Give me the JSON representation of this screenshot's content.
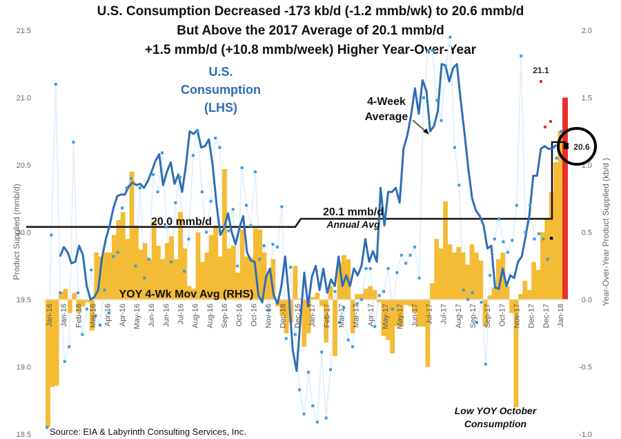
{
  "chart_data": {
    "type": "bar+line",
    "title": [
      "U.S. Consumption Decreased -173 kb/d (-1.2 mmb/wk) to 20.6 mmb/d",
      "But Above the 2017 Average of 20.1 mmb/d",
      "+1.5 mmb/d (+10.8 mmb/week) Higher Year-Over-Year"
    ],
    "ylabel_left": "Product Supplied (mmb/d)",
    "ylabel_right": "Year-Over-Year Product Supplied (kb/d )",
    "ylim_left": [
      18.5,
      21.5
    ],
    "ylim_right": [
      -1.0,
      2.0
    ],
    "yticks_left": [
      "18.5",
      "19.0",
      "19.5",
      "20.0",
      "20.5",
      "21.0",
      "21.5"
    ],
    "yticks_right": [
      "-1.0",
      "-0.5",
      "0.0",
      "0.5",
      "1.0",
      "1.5",
      "2.0"
    ],
    "x_tick_labels": [
      "Jan-16",
      "Jan-16",
      "Feb-16",
      "Mar-16",
      "Apr-16",
      "Apr-16",
      "May-16",
      "Jun-16",
      "Jun-16",
      "Jul-16",
      "Aug-16",
      "Aug-16",
      "Sep-16",
      "Oct-16",
      "Oct-16",
      "Nov-16",
      "Dec-16",
      "Dec-16",
      "Jan-17",
      "Feb-17",
      "Mar-17",
      "Mar-17",
      "Apr-17",
      "May-17",
      "May-17",
      "Jun-17",
      "Jul-17",
      "Jul-17",
      "Aug-17",
      "Sep-17",
      "Sep-17",
      "Oct-17",
      "Nov-17",
      "Dec-17",
      "Dec-17",
      "Jan-18"
    ],
    "series": [
      {
        "name": "YOY 4-Wk Mov Avg (RHS)",
        "axis": "right",
        "kind": "bar",
        "color": "#f4bb35",
        "values": [
          -0.95,
          -0.65,
          -0.64,
          0.06,
          0.08,
          -0.1,
          0.05,
          -0.1,
          -0.05,
          -0.02,
          -0.23,
          0.35,
          0.32,
          0.35,
          0.35,
          0.48,
          0.59,
          0.65,
          0.45,
          0.95,
          0.55,
          0.37,
          0.42,
          0.3,
          0.58,
          0.4,
          0.3,
          0.42,
          0.47,
          0.3,
          0.65,
          0.38,
          0.1,
          0.08,
          0.5,
          0.28,
          0.35,
          0.48,
          0.55,
          0.32,
          0.97,
          0.38,
          0.4,
          0.2,
          0.52,
          0.32,
          0.31,
          0.53,
          0.52,
          0.35,
          0.2,
          0.3,
          -0.05,
          -0.12,
          -0.25,
          -0.17,
          0.25,
          0.01,
          -0.35,
          -0.25,
          0.02,
          0.05,
          -0.05,
          -0.32,
          0.1,
          -0.42,
          0.28,
          0.33,
          0.3,
          -0.25,
          0.04,
          0.04,
          0.08,
          0.1,
          0.07,
          -0.02,
          -0.27,
          -0.3,
          -0.4,
          -0.2,
          -0.2,
          -0.04,
          -0.05,
          -0.1,
          -0.2,
          -0.2,
          -0.5,
          0.12,
          0.45,
          0.38,
          0.73,
          0.41,
          0.35,
          0.39,
          0.35,
          0.26,
          0.41,
          0.35,
          0.29,
          -0.2,
          0.03,
          0.09,
          0.3,
          0.35,
          0.1,
          -0.1,
          -0.8
        ],
        "tail_values": [
          0.04,
          0.14,
          0.07,
          0.28,
          0.22,
          0.5,
          0.6,
          0.8,
          1.02,
          1.25
        ],
        "latest_value": 1.5,
        "latest_color": "#e8302a"
      },
      {
        "name": "U.S. Consumption (LHS) weekly",
        "axis": "left",
        "kind": "scatter-line",
        "color": "#3a9ee0",
        "values": [
          18.55,
          19.98,
          21.1,
          19.55,
          19.04,
          19.15,
          20.67,
          19.55,
          19.24,
          19.43,
          19.72,
          19.38,
          19.31,
          19.57,
          19.4,
          19.82,
          19.85,
          20.18,
          20.33,
          20.4,
          19.75,
          20.33,
          19.66,
          19.8,
          20.43,
          20.3,
          20.59,
          20.04,
          19.78,
          20.22,
          20.41,
          19.71,
          19.95,
          20.57,
          20.75,
          20.3,
          20.0,
          20.23,
          20.7,
          20.63,
          20.04,
          20.01,
          20.17,
          19.75,
          20.48,
          20.2,
          20.05,
          20.45,
          19.8,
          19.9,
          19.42,
          19.91,
          19.89,
          20.19,
          19.21,
          19.74,
          19.24,
          18.83,
          18.65,
          18.96,
          18.71,
          18.59,
          19.11,
          18.62,
          18.98,
          19.56,
          19.33,
          19.44,
          19.2,
          19.15,
          19.47,
          19.5,
          19.73,
          19.73,
          19.3,
          19.53,
          19.56,
          19.73,
          19.43,
          19.7,
          19.83,
          19.77,
          19.83,
          19.89,
          19.66,
          21.0,
          21.35,
          21.35,
          20.98,
          20.83,
          21.23,
          21.45,
          20.63,
          20.35,
          19.57,
          19.5,
          19.55,
          19.33,
          19.48,
          19.02,
          19.68,
          19.95,
          20.1,
          19.93,
          19.85,
          19.94,
          20.2,
          21.31,
          20.0,
          20.2,
          19.95,
          19.99,
          19.95,
          19.8,
          19.95,
          20.55,
          20.75
        ],
        "recent_red_points": [
          21.1,
          20.81,
          20.82
        ]
      },
      {
        "name": "4-Week Average",
        "axis": "left",
        "kind": "line",
        "color": "#2f6db5",
        "values": [
          19.82,
          19.89,
          19.85,
          19.77,
          19.78,
          19.9,
          19.83,
          19.6,
          19.5,
          19.52,
          19.57,
          19.81,
          19.95,
          20.05,
          20.18,
          20.27,
          20.28,
          20.28,
          20.34,
          20.37,
          20.35,
          20.36,
          20.33,
          20.38,
          20.45,
          20.53,
          20.58,
          20.35,
          20.45,
          20.52,
          20.36,
          20.43,
          20.3,
          20.5,
          20.75,
          20.73,
          20.76,
          20.63,
          20.64,
          20.69,
          20.5,
          20.21,
          19.98,
          20.03,
          20.14,
          20.0,
          19.91,
          20.03,
          20.12,
          19.85,
          19.79,
          19.78,
          19.53,
          19.48,
          19.67,
          19.73,
          19.53,
          19.47,
          19.6,
          19.82,
          19.52,
          19.12,
          18.97,
          19.35,
          19.7,
          19.45,
          19.67,
          19.75,
          19.57,
          19.73,
          19.55,
          19.65,
          19.6,
          19.82,
          19.6,
          19.68,
          19.6,
          19.73,
          19.68,
          19.75,
          19.95,
          19.78,
          19.86,
          19.78,
          20.33,
          20.05,
          20.3,
          20.3,
          20.33,
          20.22,
          20.62,
          20.72,
          20.87,
          21.07,
          20.88,
          21.13,
          21.05,
          20.75,
          20.79,
          20.9,
          21.25,
          21.24,
          21.12,
          21.22,
          21.25,
          20.98,
          20.73,
          20.47,
          20.25,
          20.16,
          20.12,
          20.05,
          19.88,
          19.9,
          19.59,
          19.58,
          19.73,
          19.6,
          19.68,
          19.66,
          19.78,
          19.82,
          19.97,
          20.13,
          20.42,
          20.42,
          20.62,
          20.64,
          20.62,
          20.62,
          20.65
        ]
      },
      {
        "name": "Annual Avg",
        "axis": "left",
        "kind": "step",
        "color": "#111111",
        "segments": [
          {
            "label": "20.0 mmb/d",
            "value": 20.04
          },
          {
            "label": "20.1 mmb/d",
            "value": 20.1
          },
          {
            "label": "",
            "value": 20.67
          }
        ]
      }
    ],
    "annotations": {
      "consumption_label": [
        "U.S.",
        "Consumption",
        "(LHS)"
      ],
      "four_week_label": [
        "4-Week",
        "Average"
      ],
      "avg2016_label": "20.0 mmb/d",
      "avg2017_label": "20.1 mmb/d",
      "avg2017_sublabel": "Annual Avg",
      "yoy_label": "YOY 4-Wk Mov Avg (RHS)",
      "peak_label": "21.1",
      "latest_label": "20.6",
      "low_yoy_label": [
        "Low YOY October",
        "Consumption"
      ],
      "source": "Source: EIA & Labyrinth Consulting Services, Inc."
    },
    "grid": false,
    "legend": "none"
  }
}
